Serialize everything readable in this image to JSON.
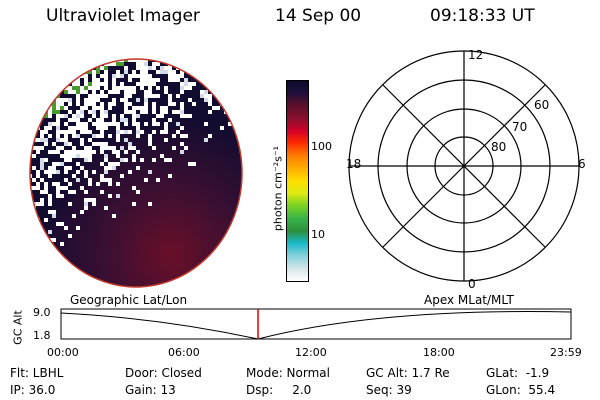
{
  "header": {
    "instrument": "Ultraviolet Imager",
    "date": "14 Sep 00",
    "time": "09:18:33 UT"
  },
  "colorbar": {
    "unit_label": "photon cm⁻²s⁻¹",
    "ticks": [
      "100",
      "10"
    ],
    "colors": [
      "#ffffff",
      "#d8e6ea",
      "#7fd0da",
      "#18b8c8",
      "#2c8f3c",
      "#37b24a",
      "#7ed321",
      "#e0ea12",
      "#ffde00",
      "#ffb000",
      "#ff7a00",
      "#ff2a00",
      "#d4002a",
      "#8a0f2e",
      "#5a0f2a",
      "#1e0f3c",
      "#0c0a2a"
    ]
  },
  "polar_plot": {
    "mlt_labels": {
      "top": "12",
      "left": "18",
      "right": "6",
      "bottom": "0"
    },
    "lat_labels": [
      "60",
      "70",
      "80"
    ]
  },
  "timeline": {
    "left_title": "Geographic Lat/Lon",
    "right_title": "Apex MLat/MLT",
    "axis_label": "GC Alt",
    "y_ticks": [
      "9.0",
      "1.8"
    ],
    "x_ticks": [
      "00:00",
      "06:00",
      "12:00",
      "18:00",
      "23:59"
    ],
    "cursor_color": "#e00000"
  },
  "status": {
    "flt": "Flt: LBHL",
    "ip": "IP: 36.0",
    "door": "Door: Closed",
    "gain": "Gain: 13",
    "mode": "Mode: Normal",
    "dsp": "Dsp:     2.0",
    "gc_alt": "GC Alt: 1.7 Re",
    "seq": "Seq: 39",
    "glat": "GLat:  -1.9",
    "glon": "GLon:  55.4"
  }
}
